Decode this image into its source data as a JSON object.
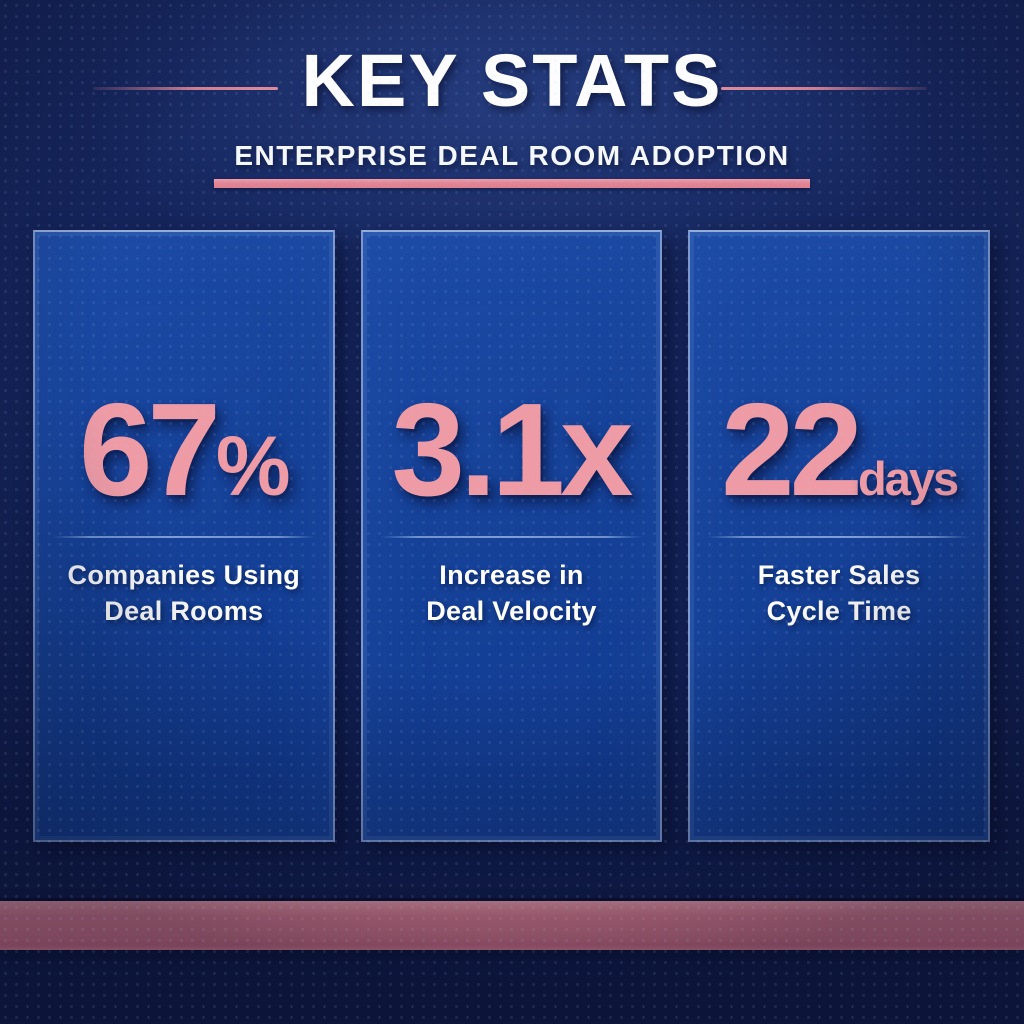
{
  "header": {
    "title": "KEY STATS",
    "subtitle": "ENTERPRISE DEAL ROOM ADOPTION"
  },
  "stats": [
    {
      "value": "67",
      "suffix": "%",
      "label_line1": "Companies Using",
      "label_line2": "Deal Rooms"
    },
    {
      "value": "3.1",
      "suffix": "x",
      "label_line1": "Increase in",
      "label_line2": "Deal Velocity"
    },
    {
      "value": "22",
      "suffix": "days",
      "label_line1": "Faster Sales",
      "label_line2": "Cycle Time"
    }
  ],
  "colors": {
    "background_navy": "#132257",
    "card_blue": "#164299",
    "card_border": "#7c98cf",
    "accent_pink": "#ee9ba6",
    "stripe_pink": "#e58094",
    "underline_pink": "#e28795",
    "text_white": "#ffffff"
  },
  "chart_data": {
    "type": "table",
    "title": "KEY STATS",
    "subtitle": "ENTERPRISE DEAL ROOM ADOPTION",
    "categories": [
      "Companies Using Deal Rooms",
      "Increase in Deal Velocity",
      "Faster Sales Cycle Time"
    ],
    "values": [
      67,
      3.1,
      22
    ],
    "units": [
      "%",
      "x",
      "days"
    ]
  }
}
